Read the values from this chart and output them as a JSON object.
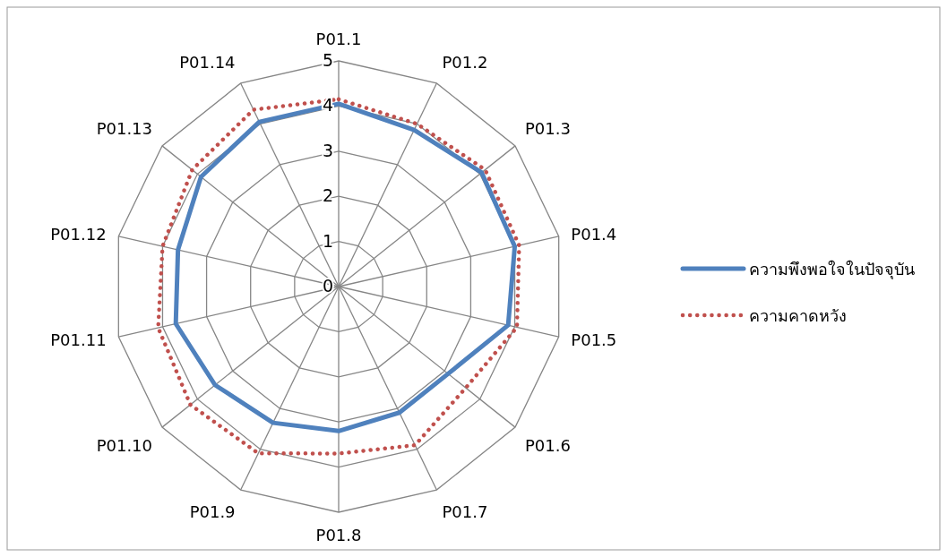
{
  "chart_data": {
    "type": "radar",
    "categories": [
      "P01.1",
      "P01.2",
      "P01.3",
      "P01.4",
      "P01.5",
      "P01.6",
      "P01.7",
      "P01.8",
      "P01.9",
      "P01.10",
      "P01.11",
      "P01.12",
      "P01.13",
      "P01.14"
    ],
    "series": [
      {
        "name": "ความพึงพอใจในปัจจุบัน",
        "color": "#4f81bd",
        "line_style": "solid",
        "values": [
          4.05,
          3.85,
          4.05,
          4.0,
          3.85,
          3.1,
          3.1,
          3.2,
          3.35,
          3.5,
          3.7,
          3.65,
          3.9,
          4.05
        ]
      },
      {
        "name": "ความคาดหวัง",
        "color": "#c0504d",
        "line_style": "dotted",
        "values": [
          4.15,
          4.0,
          4.15,
          4.1,
          4.05,
          3.6,
          3.9,
          3.7,
          4.1,
          4.2,
          4.1,
          4.0,
          4.15,
          4.35
        ]
      }
    ],
    "ylim": [
      0,
      5
    ],
    "yticks": [
      0,
      1,
      2,
      3,
      4,
      5
    ],
    "grid": true,
    "legend": "right",
    "marker": "none"
  }
}
